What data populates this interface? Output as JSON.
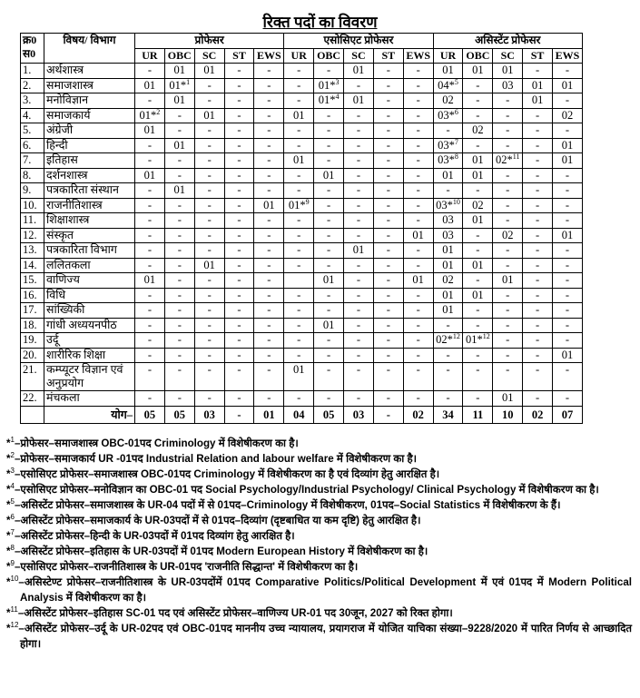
{
  "title": "रिक्त पदों का विवरण",
  "table": {
    "sno_header": "क्र0 स0",
    "subject_header": "विषय/ विभाग",
    "groups": [
      "प्रोफेसर",
      "एसोसिएट प्रोफेसर",
      "असिस्टेंट प्रोफेसर"
    ],
    "categories": [
      "UR",
      "OBC",
      "SC",
      "ST",
      "EWS"
    ],
    "rows": [
      {
        "sno": "1.",
        "subject": "अर्थशास्त्र",
        "cells": [
          "-",
          "01",
          "01",
          "-",
          "-",
          "-",
          "-",
          "01",
          "-",
          "-",
          "01",
          "01",
          "01",
          "-",
          "-"
        ]
      },
      {
        "sno": "2.",
        "subject": "समाजशास्त्र",
        "cells": [
          "01",
          {
            "v": "01*",
            "sup": "1"
          },
          "-",
          "-",
          "-",
          "-",
          {
            "v": "01*",
            "sup": "3"
          },
          "-",
          "-",
          "-",
          {
            "v": "04*",
            "sup": "5"
          },
          "-",
          "03",
          "01",
          "01"
        ]
      },
      {
        "sno": "3.",
        "subject": "मनोविज्ञान",
        "cells": [
          "-",
          "01",
          "-",
          "-",
          "-",
          "-",
          {
            "v": "01*",
            "sup": "4"
          },
          "01",
          "-",
          "-",
          "02",
          "-",
          "-",
          "01",
          "-"
        ]
      },
      {
        "sno": "4.",
        "subject": "समाजकार्य",
        "cells": [
          {
            "v": "01*",
            "sup": "2"
          },
          "-",
          "01",
          "-",
          "-",
          "01",
          "-",
          "-",
          "-",
          "-",
          {
            "v": "03*",
            "sup": "6"
          },
          "-",
          "-",
          "-",
          "02"
        ]
      },
      {
        "sno": "5.",
        "subject": "अंग्रेजी",
        "cells": [
          "01",
          "-",
          "-",
          "-",
          "-",
          "-",
          "-",
          "-",
          "-",
          "-",
          "-",
          "02",
          "-",
          "-",
          "-"
        ]
      },
      {
        "sno": "6.",
        "subject": "हिन्दी",
        "cells": [
          "-",
          "01",
          "-",
          "-",
          "-",
          "-",
          "-",
          "-",
          "-",
          "-",
          {
            "v": "03*",
            "sup": "7"
          },
          "-",
          "-",
          "-",
          "01"
        ]
      },
      {
        "sno": "7.",
        "subject": "इतिहास",
        "cells": [
          "-",
          "-",
          "-",
          "-",
          "-",
          "01",
          "-",
          "-",
          "-",
          "-",
          {
            "v": "03*",
            "sup": "8"
          },
          "01",
          {
            "v": "02*",
            "sup": "11"
          },
          "-",
          "01"
        ]
      },
      {
        "sno": "8.",
        "subject": "दर्शनशास्त्र",
        "cells": [
          "01",
          "-",
          "-",
          "-",
          "-",
          "-",
          "01",
          "-",
          "-",
          "-",
          "01",
          "01",
          "-",
          "-",
          "-"
        ]
      },
      {
        "sno": "9.",
        "subject": "पत्रकारिता संस्थान",
        "cells": [
          "-",
          "01",
          "-",
          "-",
          "-",
          "-",
          "-",
          "-",
          "-",
          "-",
          "-",
          "-",
          "-",
          "-",
          "-"
        ]
      },
      {
        "sno": "10.",
        "subject": "राजनीतिशास्त्र",
        "cells": [
          "-",
          "-",
          "-",
          "-",
          "01",
          {
            "v": "01*",
            "sup": "9"
          },
          "-",
          "-",
          "-",
          "-",
          {
            "v": "03*",
            "sup": "10"
          },
          "02",
          "-",
          "-",
          "-"
        ]
      },
      {
        "sno": "11.",
        "subject": "शिक्षाशास्त्र",
        "cells": [
          "-",
          "-",
          "-",
          "-",
          "-",
          "-",
          "-",
          "-",
          "-",
          "-",
          "03",
          "01",
          "-",
          "-",
          "-"
        ]
      },
      {
        "sno": "12.",
        "subject": "संस्कृत",
        "cells": [
          "-",
          "-",
          "-",
          "-",
          "-",
          "-",
          "-",
          "-",
          "-",
          "01",
          "03",
          "-",
          "02",
          "-",
          "01"
        ]
      },
      {
        "sno": "13.",
        "subject": "पत्रकारिता विभाग",
        "cells": [
          "-",
          "-",
          "-",
          "-",
          "-",
          "-",
          "-",
          "01",
          "-",
          "-",
          "01",
          "-",
          "-",
          "-",
          "-"
        ]
      },
      {
        "sno": "14.",
        "subject": "ललितकला",
        "cells": [
          "-",
          "-",
          "01",
          "-",
          "-",
          "-",
          "-",
          "-",
          "-",
          "-",
          "01",
          "01",
          "-",
          "-",
          "-"
        ]
      },
      {
        "sno": "15.",
        "subject": "वाणिज्य",
        "cells": [
          "01",
          "-",
          "-",
          "-",
          "-",
          "",
          "01",
          "-",
          "-",
          "01",
          "02",
          "-",
          "01",
          "-",
          "-"
        ]
      },
      {
        "sno": "16.",
        "subject": "विधि",
        "cells": [
          "-",
          "-",
          "-",
          "-",
          "-",
          "-",
          "-",
          "-",
          "-",
          "-",
          "01",
          "01",
          "-",
          "-",
          "-"
        ]
      },
      {
        "sno": "17.",
        "subject": "सांख्यिकी",
        "cells": [
          "-",
          "-",
          "-",
          "-",
          "-",
          "-",
          "-",
          "-",
          "-",
          "-",
          "01",
          "-",
          "-",
          "-",
          "-"
        ]
      },
      {
        "sno": "18.",
        "subject": "गांधी अध्ययनपीठ",
        "cells": [
          "-",
          "-",
          "-",
          "-",
          "-",
          "-",
          "01",
          "-",
          "-",
          "-",
          "-",
          "-",
          "-",
          "-",
          "-"
        ]
      },
      {
        "sno": "19.",
        "subject": "उर्दू",
        "cells": [
          "-",
          "-",
          "-",
          "-",
          "-",
          "-",
          "-",
          "-",
          "-",
          "-",
          {
            "v": "02*",
            "sup": "12"
          },
          {
            "v": "01*",
            "sup": "12"
          },
          "-",
          "-",
          "-"
        ]
      },
      {
        "sno": "20.",
        "subject": "शारीरिक शिक्षा",
        "cells": [
          "-",
          "-",
          "-",
          "-",
          "-",
          "-",
          "-",
          "-",
          "-",
          "-",
          "-",
          "-",
          "-",
          "-",
          "01"
        ]
      },
      {
        "sno": "21.",
        "subject": "कम्प्यूटर विज्ञान एवं अनुप्रयोग",
        "cells": [
          "-",
          "-",
          "-",
          "-",
          "-",
          "01",
          "-",
          "-",
          "-",
          "-",
          "-",
          "-",
          "-",
          "-",
          "-"
        ]
      },
      {
        "sno": "22.",
        "subject": "मंचकला",
        "cells": [
          "-",
          "-",
          "-",
          "-",
          "-",
          "-",
          "-",
          "-",
          "-",
          "-",
          "-",
          "-",
          "01",
          "-",
          "-"
        ]
      }
    ],
    "total_label": "योग–",
    "totals": [
      "05",
      "05",
      "03",
      "-",
      "01",
      "04",
      "05",
      "03",
      "-",
      "02",
      "34",
      "11",
      "10",
      "02",
      "07"
    ]
  },
  "notes": [
    {
      "mark": "*",
      "num": "1",
      "text": "–प्रोफेसर–समाजशास्त्र OBC-01पद Criminology में विशेषीकरण का है।"
    },
    {
      "mark": "*",
      "num": "2",
      "text": "–प्रोफेसर–समाजकार्य UR -01पद Industrial Relation and labour welfare में विशेषीकरण का है।"
    },
    {
      "mark": "*",
      "num": "3",
      "text": "–एसोसिएट प्रोफेसर–समाजशास्त्र OBC-01पद Criminology में विशेषीकरण का है एवं दिव्यांग हेतु आरक्षित है।"
    },
    {
      "mark": "*",
      "num": "4",
      "text": "–एसोसिएट प्रोफेसर–मनोविज्ञान का OBC-01 पद Social Psychology/Industrial Psychology/ Clinical Psychology में विशेषीकरण का है।"
    },
    {
      "mark": "*",
      "num": "5",
      "text": "–असिस्टेंट प्रोफेसर–समाजशास्त्र के UR-04 पदों में से 01पद–Criminology में विशेषीकरण, 01पद–Social Statistics में विशेषीकरण के हैं।"
    },
    {
      "mark": "*",
      "num": "6",
      "text": "–असिस्टेंट प्रोफेसर–समाजकार्य के UR-03पदों में से 01पद–दिव्यांग (दृष्टबाधित या कम दृष्टि) हेतु आरक्षित है।"
    },
    {
      "mark": "*",
      "num": "7",
      "text": "–असिस्टेंट प्रोफेसर–हिन्दी के UR-03पदों में 01पद दिव्यांग हेतु आरक्षित है।"
    },
    {
      "mark": "*",
      "num": "8",
      "text": "–असिस्टेंट प्रोफेसर–इतिहास के UR-03पदों में 01पद Modern European History में विशेषीकरण का है।"
    },
    {
      "mark": "*",
      "num": "9",
      "text": "–एसोसिएट प्रोफेसर–राजनीतिशास्त्र के UR-01पद 'राजनीति सिद्धान्त' में विशेषीकरण का है।"
    },
    {
      "mark": "*",
      "num": "10",
      "text": "–असिस्टेण्ट प्रोफेसर–राजनीतिशास्त्र के UR-03पदोंमें 01पद Comparative Politics/Political Development में एवं 01पद में Modern Political Analysis में विशेषीकरण का है।"
    },
    {
      "mark": "*",
      "num": "11",
      "text": "–असिस्टेंट प्रोफेसर–इतिहास SC-01 पद एवं असिस्टेंट प्रोफेसर–वाणिज्य UR-01 पद 30जून, 2027 को रिक्त होगा।"
    },
    {
      "mark": "*",
      "num": "12",
      "text": "–असिस्टेंट प्रोफेसर–उर्दू के UR-02पद एवं OBC-01पद माननीय उच्च न्यायालय, प्रयागराज में योजित याचिका संख्या–9228/2020 में पारित निर्णय से आच्छादित होगा।"
    }
  ]
}
